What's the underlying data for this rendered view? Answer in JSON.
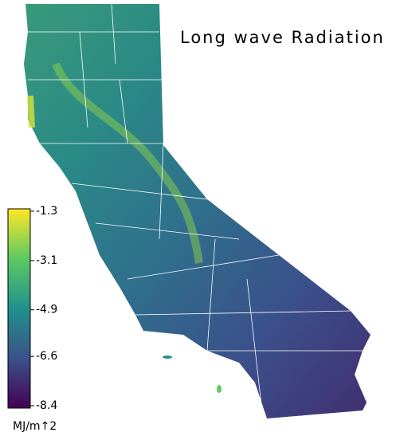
{
  "title": "Long wave Radiation",
  "colorbar": {
    "label": "MJ/m↑2",
    "range": [
      -8.4,
      -1.3
    ],
    "ticks": [
      -1.3,
      -3.1,
      -4.9,
      -6.6,
      -8.4
    ],
    "colors": [
      "#440154",
      "#3b528b",
      "#21918c",
      "#5ec962",
      "#fde725"
    ]
  }
}
